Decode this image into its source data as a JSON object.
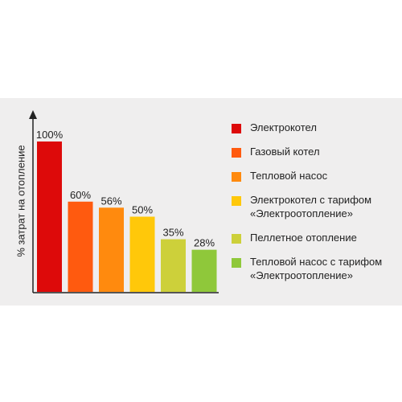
{
  "chart_data": {
    "type": "bar",
    "ylabel": "% затрат на отопление",
    "ylim": [
      0,
      100
    ],
    "unit": "%",
    "bars": [
      {
        "value": 100,
        "label": "100%",
        "color": "#dd0a0a"
      },
      {
        "value": 60,
        "label": "60%",
        "color": "#ff5a0f"
      },
      {
        "value": 56,
        "label": "56%",
        "color": "#ff8a0e"
      },
      {
        "value": 50,
        "label": "50%",
        "color": "#ffc80a"
      },
      {
        "value": 35,
        "label": "35%",
        "color": "#cdd03a"
      },
      {
        "value": 28,
        "label": "28%",
        "color": "#8fc83a"
      }
    ],
    "legend": [
      {
        "label": "Электрокотел",
        "color": "#dd0a0a"
      },
      {
        "label": "Газовый котел",
        "color": "#ff5a0f"
      },
      {
        "label": "Тепловой насос",
        "color": "#ff8a0e"
      },
      {
        "label": "Электрокотел с тарифом\n«Электроотопление»",
        "color": "#ffc80a"
      },
      {
        "label": "Пеллетное отопление",
        "color": "#cdd03a"
      },
      {
        "label": "Тепловой насос с тарифом\n«Электроотопление»",
        "color": "#8fc83a"
      }
    ],
    "grid": false,
    "legend_position": "right"
  }
}
